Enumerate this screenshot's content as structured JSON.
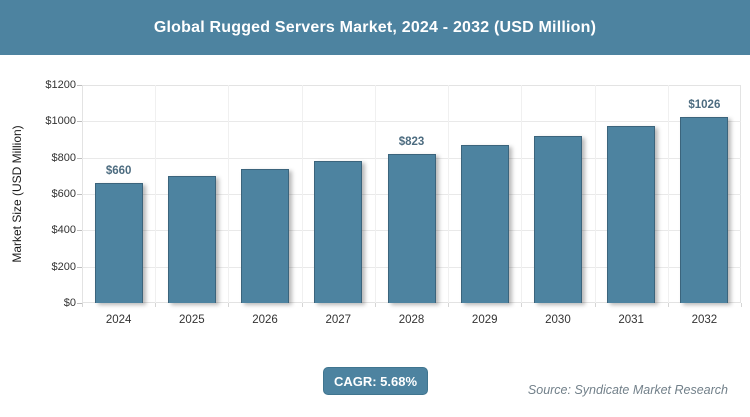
{
  "header": {
    "title": "Global Rugged Servers Market, 2024 - 2032 (USD Million)"
  },
  "chart_data": {
    "type": "bar",
    "title": "Global Rugged Servers Market, 2024 - 2032 (USD Million)",
    "categories": [
      "2024",
      "2025",
      "2026",
      "2027",
      "2028",
      "2029",
      "2030",
      "2031",
      "2032"
    ],
    "values": [
      660,
      697,
      737,
      779,
      823,
      870,
      919,
      972,
      1026
    ],
    "point_labels": [
      "$660",
      "",
      "",
      "",
      "$823",
      "",
      "",
      "",
      "$1026"
    ],
    "xlabel": "",
    "ylabel": "Market Size (USD Million)",
    "ylim": [
      0,
      1200
    ],
    "ytick_step": 200,
    "ytick_labels": [
      "$0",
      "$200",
      "$400",
      "$600",
      "$800",
      "$1000",
      "$1200"
    ],
    "grid": true,
    "legend": "none",
    "bar_color": "#4d83a0",
    "point_label_color": "#4d6c80"
  },
  "footer": {
    "cagr_label": "CAGR: 5.68%",
    "source": "Source: Syndicate Market Research"
  },
  "colors": {
    "accent": "#4d83a0",
    "title_text": "#ffffff",
    "tick_text": "#333333",
    "source_text": "#72808a"
  }
}
